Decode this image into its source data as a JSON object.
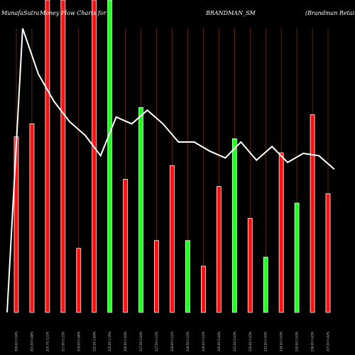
{
  "header": {
    "site": "MunafaSutra",
    "title_prefix": "Money Flow  Charts for",
    "symbol": "BRANDMAN_SM",
    "company": "(Brandman  Retail  Limited)"
  },
  "colors": {
    "background": "#000000",
    "up": "#22ff22",
    "down": "#ff1111",
    "grid": "#8b4513",
    "line": "#ffffff"
  },
  "chart_data": {
    "type": "bar",
    "bars": [
      {
        "color": "red",
        "height": 0.562,
        "label": "209.00 0.54%"
      },
      {
        "color": "red",
        "height": 0.604,
        "label": "210.00 0.48%"
      },
      {
        "color": "red",
        "height": 1.0,
        "label": "216.75 3.21%"
      },
      {
        "color": "red",
        "height": 1.0,
        "label": "217.00 0.12%"
      },
      {
        "color": "red",
        "height": 0.205,
        "label": "218.00 0.46%"
      },
      {
        "color": "red",
        "height": 1.0,
        "label": "222.00 1.83%"
      },
      {
        "color": "green",
        "height": 1.0,
        "label": "225.00 1.35%"
      },
      {
        "color": "red",
        "height": 0.426,
        "label": "226.00 0.44%"
      },
      {
        "color": "green",
        "height": 0.656,
        "label": "227.00 0.44%"
      },
      {
        "color": "red",
        "height": 0.23,
        "label": "227.50 0.22%"
      },
      {
        "color": "red",
        "height": 0.47,
        "label": "228.00 0.22%"
      },
      {
        "color": "green",
        "height": 0.23,
        "label": "228.50 0.22%"
      },
      {
        "color": "red",
        "height": 0.148,
        "label": "229.00 0.22%"
      },
      {
        "color": "red",
        "height": 0.403,
        "label": "230.00 0.44%"
      },
      {
        "color": "green",
        "height": 0.556,
        "label": "231.00 0.43%"
      },
      {
        "color": "red",
        "height": 0.301,
        "label": "232.00 0.43%"
      },
      {
        "color": "green",
        "height": 0.177,
        "label": "233.00 0.43%"
      },
      {
        "color": "red",
        "height": 0.511,
        "label": "234.00 0.43%"
      },
      {
        "color": "green",
        "height": 0.35,
        "label": "235.00 0.43%"
      },
      {
        "color": "red",
        "height": 0.633,
        "label": "236.00 0.43%"
      },
      {
        "color": "red",
        "height": 0.38,
        "label": "237.00 0.42%"
      }
    ],
    "line": [
      0.0,
      1.25,
      1.05,
      0.93,
      0.84,
      0.78,
      0.69,
      0.86,
      0.83,
      0.89,
      0.83,
      0.75,
      0.75,
      0.71,
      0.68,
      0.75,
      0.67,
      0.73,
      0.66,
      0.7,
      0.69,
      0.63
    ],
    "ylim": [
      0,
      1
    ]
  }
}
